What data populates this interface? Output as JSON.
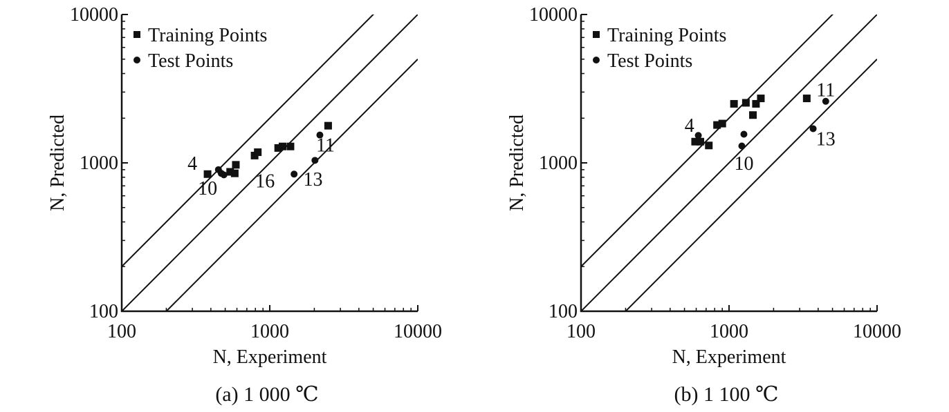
{
  "chart_data": [
    {
      "type": "scatter",
      "caption": "(a) 1 000 ℃",
      "xlabel": "N, Experiment",
      "ylabel": "N, Predicted",
      "xscale": "log",
      "yscale": "log",
      "xlim": [
        100,
        10000
      ],
      "ylim": [
        100,
        10000
      ],
      "xticks": [
        "100",
        "1000",
        "10000"
      ],
      "yticks": [
        "100",
        "1000",
        "10000"
      ],
      "legend": {
        "placement": "top-left",
        "entries": [
          {
            "label": "Training Points",
            "marker": "square"
          },
          {
            "label": "Test Points",
            "marker": "circle"
          }
        ]
      },
      "reference_lines": [
        {
          "factor": 2,
          "label": ""
        },
        {
          "factor": 1,
          "label": ""
        },
        {
          "factor": 0.5,
          "label": ""
        }
      ],
      "series": [
        {
          "name": "Training Points",
          "marker": "square",
          "points": [
            [
              380,
              840
            ],
            [
              540,
              870
            ],
            [
              580,
              850
            ],
            [
              590,
              970
            ],
            [
              790,
              1120
            ],
            [
              830,
              1180
            ],
            [
              1140,
              1260
            ],
            [
              1220,
              1290
            ],
            [
              1380,
              1290
            ],
            [
              2480,
              1780
            ]
          ]
        },
        {
          "name": "Test Points",
          "marker": "circle",
          "points": [
            [
              450,
              900
            ],
            [
              470,
              850
            ],
            [
              490,
              830
            ],
            [
              1460,
              840
            ],
            [
              2020,
              1040
            ],
            [
              2180,
              1540
            ]
          ]
        }
      ],
      "annotations": [
        {
          "text": "4",
          "x": 300,
          "y": 1000
        },
        {
          "text": "10",
          "x": 380,
          "y": 680
        },
        {
          "text": "16",
          "x": 930,
          "y": 760
        },
        {
          "text": "13",
          "x": 1960,
          "y": 780
        },
        {
          "text": "11",
          "x": 2380,
          "y": 1330
        }
      ]
    },
    {
      "type": "scatter",
      "caption": "(b) 1 100 ℃",
      "xlabel": "N, Experiment",
      "ylabel": "N, Predicted",
      "xscale": "log",
      "yscale": "log",
      "xlim": [
        100,
        10000
      ],
      "ylim": [
        100,
        10000
      ],
      "xticks": [
        "100",
        "1000",
        "10000"
      ],
      "yticks": [
        "100",
        "1000",
        "10000"
      ],
      "legend": {
        "placement": "top-left",
        "entries": [
          {
            "label": "Training Points",
            "marker": "square"
          },
          {
            "label": "Test Points",
            "marker": "circle"
          }
        ]
      },
      "reference_lines": [
        {
          "factor": 2,
          "label": ""
        },
        {
          "factor": 1,
          "label": ""
        },
        {
          "factor": 0.5,
          "label": ""
        }
      ],
      "series": [
        {
          "name": "Training Points",
          "marker": "square",
          "points": [
            [
              590,
              1390
            ],
            [
              640,
              1390
            ],
            [
              730,
              1310
            ],
            [
              830,
              1800
            ],
            [
              900,
              1840
            ],
            [
              1080,
              2500
            ],
            [
              1300,
              2540
            ],
            [
              1450,
              2100
            ],
            [
              1520,
              2500
            ],
            [
              1640,
              2720
            ],
            [
              3350,
              2720
            ]
          ]
        },
        {
          "name": "Test Points",
          "marker": "circle",
          "points": [
            [
              620,
              1530
            ],
            [
              1220,
              1300
            ],
            [
              1260,
              1560
            ],
            [
              3700,
              1700
            ],
            [
              4500,
              2600
            ]
          ]
        }
      ],
      "annotations": [
        {
          "text": "4",
          "x": 540,
          "y": 1800
        },
        {
          "text": "10",
          "x": 1260,
          "y": 1000
        },
        {
          "text": "13",
          "x": 4500,
          "y": 1460
        },
        {
          "text": "11",
          "x": 4500,
          "y": 3130
        }
      ]
    }
  ]
}
